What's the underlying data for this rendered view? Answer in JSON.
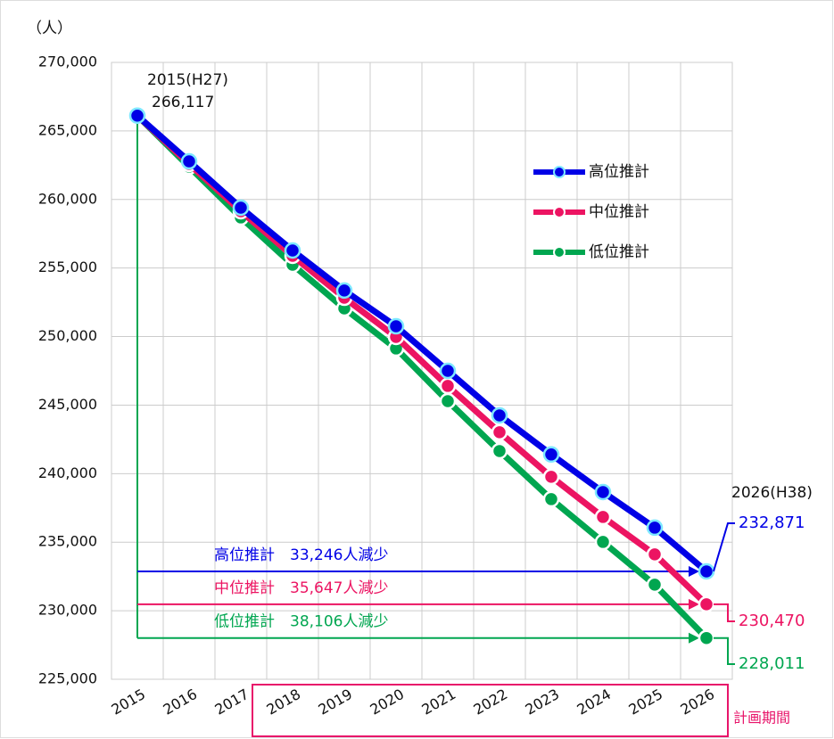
{
  "chart_data": {
    "type": "line",
    "unit_label": "（人）",
    "categories": [
      "2015",
      "2016",
      "2017",
      "2018",
      "2019",
      "2020",
      "2021",
      "2022",
      "2023",
      "2024",
      "2025",
      "2026"
    ],
    "series": [
      {
        "name": "高位推計",
        "color": "#0000e6",
        "values": [
          266117,
          262780,
          259400,
          256280,
          253360,
          250750,
          247500,
          244250,
          241400,
          238660,
          236060,
          232871
        ]
      },
      {
        "name": "中位推計",
        "color": "#ec1462",
        "values": [
          266117,
          262590,
          259140,
          255890,
          252830,
          249970,
          246400,
          243020,
          239770,
          236840,
          234110,
          230470
        ]
      },
      {
        "name": "低位推計",
        "color": "#00a650",
        "values": [
          266117,
          262390,
          258690,
          255240,
          252050,
          249130,
          245290,
          241650,
          238140,
          235020,
          231900,
          228011
        ]
      }
    ],
    "ylim": [
      225000,
      270000
    ],
    "yticks": [
      {
        "value": 225000,
        "label": "225,000"
      },
      {
        "value": 230000,
        "label": "230,000"
      },
      {
        "value": 235000,
        "label": "235,000"
      },
      {
        "value": 240000,
        "label": "240,000"
      },
      {
        "value": 245000,
        "label": "245,000"
      },
      {
        "value": 250000,
        "label": "250,000"
      },
      {
        "value": 255000,
        "label": "255,000"
      },
      {
        "value": 260000,
        "label": "260,000"
      },
      {
        "value": 265000,
        "label": "265,000"
      },
      {
        "value": 270000,
        "label": "270,000"
      }
    ],
    "grid": true,
    "start_label": "2015(H27)",
    "start_value_label": "266,117",
    "end_label": "2026(H38)",
    "end_value_labels": [
      "232,871",
      "230,470",
      "228,011"
    ],
    "decrease_labels": [
      "高位推計　33,246人減少",
      "中位推計　35,647人減少",
      "低位推計　38,106人減少"
    ],
    "period_label": "計画期間"
  }
}
